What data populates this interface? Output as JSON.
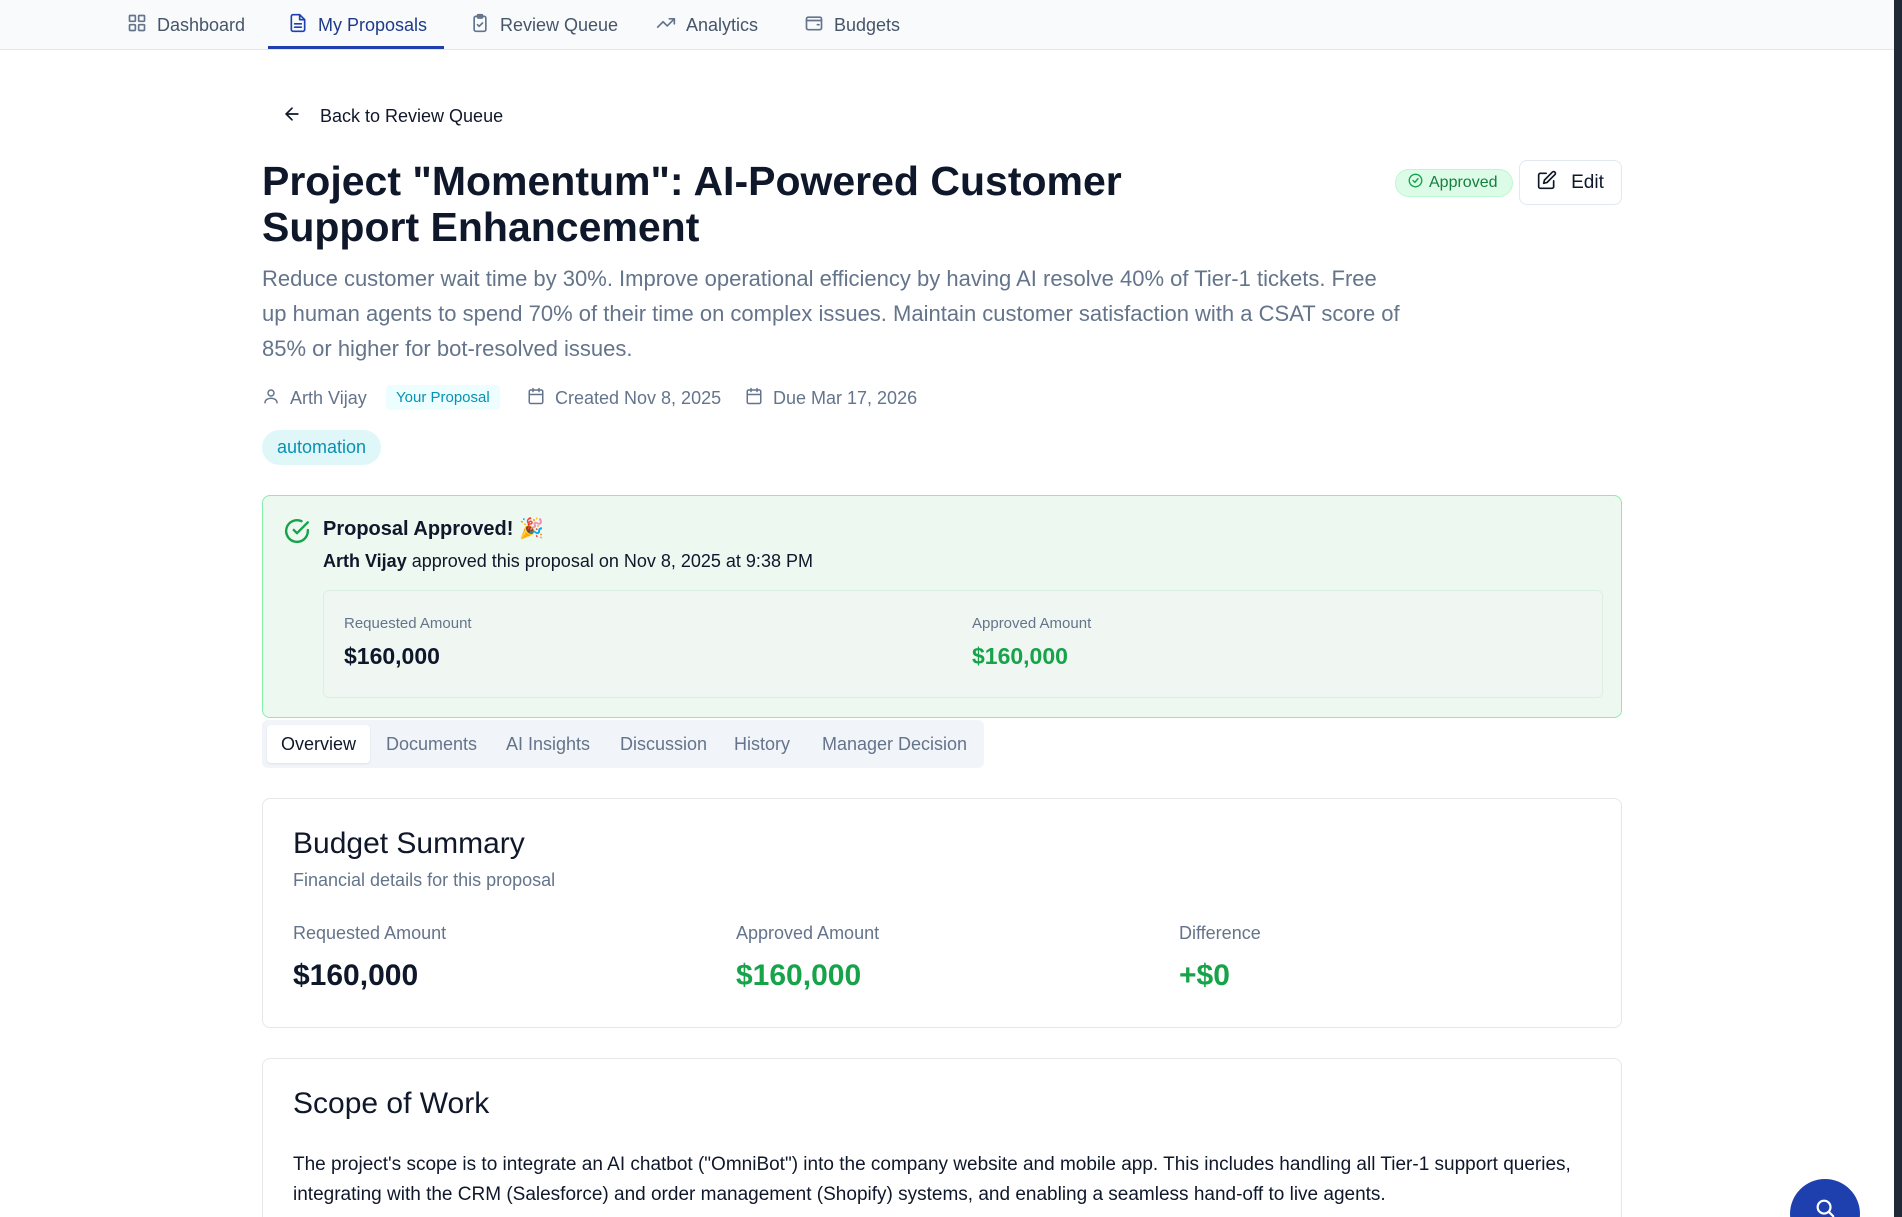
{
  "nav": {
    "tabs": [
      {
        "label": "Dashboard",
        "icon": "grid-icon"
      },
      {
        "label": "My Proposals",
        "icon": "document-icon",
        "active": true
      },
      {
        "label": "Review Queue",
        "icon": "clipboard-check-icon"
      },
      {
        "label": "Analytics",
        "icon": "trending-up-icon"
      },
      {
        "label": "Budgets",
        "icon": "wallet-icon"
      }
    ]
  },
  "back_label": "Back to Review Queue",
  "proposal": {
    "title": "Project \"Momentum\": AI-Powered Customer Support Enhancement",
    "status": "Approved",
    "edit_label": "Edit",
    "description": "Reduce customer wait time by 30%. Improve operational efficiency by having AI resolve 40% of Tier-1 tickets. Free up human agents to spend 70% of their time on complex issues. Maintain customer satisfaction with a CSAT score of 85% or higher for bot-resolved issues.",
    "author": "Arth Vijay",
    "author_badge": "Your Proposal",
    "created": "Created Nov 8, 2025",
    "due": "Due Mar 17, 2026",
    "tag": "automation"
  },
  "approval": {
    "title": "Proposal Approved! 🎉",
    "approver": "Arth Vijay",
    "message": " approved this proposal on Nov 8, 2025 at 9:38 PM",
    "requested_label": "Requested Amount",
    "requested_value": "$160,000",
    "approved_label": "Approved Amount",
    "approved_value": "$160,000"
  },
  "section_tabs": [
    "Overview",
    "Documents",
    "AI Insights",
    "Discussion",
    "History",
    "Manager Decision"
  ],
  "budget_summary": {
    "title": "Budget Summary",
    "subtitle": "Financial details for this proposal",
    "requested_label": "Requested Amount",
    "requested_value": "$160,000",
    "approved_label": "Approved Amount",
    "approved_value": "$160,000",
    "difference_label": "Difference",
    "difference_value": "+$0"
  },
  "scope": {
    "title": "Scope of Work",
    "text": "The project's scope is to integrate an AI chatbot (\"OmniBot\") into the company website and mobile app. This includes handling all Tier-1 support queries, integrating with the CRM (Salesforce) and order management (Shopify) systems, and enabling a seamless hand-off to live agents."
  },
  "colors": {
    "primary": "#1e40af",
    "success": "#16a34a",
    "accent_cyan": "#0891b2",
    "muted_text": "#64748b"
  }
}
